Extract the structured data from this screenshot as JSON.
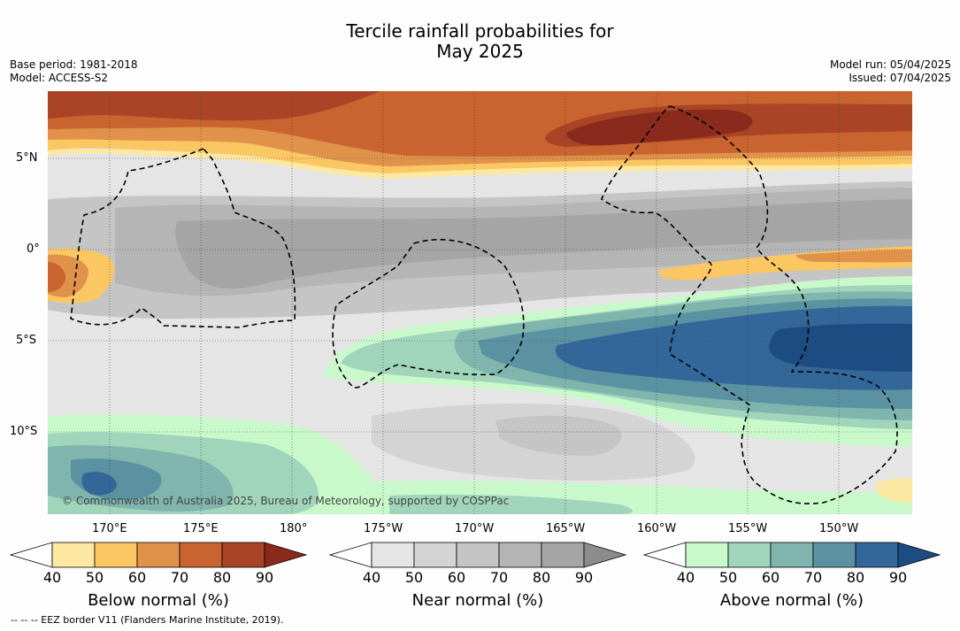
{
  "title": {
    "line1": "Tercile rainfall probabilities for",
    "line2": "May 2025"
  },
  "meta": {
    "base_period": "Base period: 1981-2018",
    "model": "Model: ACCESS-S2",
    "model_run": "Model run: 05/04/2025",
    "issued": "Issued: 07/04/2025"
  },
  "map": {
    "lat_labels": [
      "5°N",
      "0°",
      "5°S",
      "10°S"
    ],
    "lon_labels": [
      "170°E",
      "175°E",
      "180°",
      "175°W",
      "170°W",
      "165°W",
      "160°W",
      "155°W",
      "150°W"
    ],
    "copyright": "© Commonwealth of Australia 2025, Bureau of Meteorology, supported by COSPPac",
    "colors": {
      "below": [
        "#fde8a1",
        "#fbc762",
        "#e1924a",
        "#c9632f",
        "#a94426",
        "#8a2a1d"
      ],
      "near": [
        "#e5e5e5",
        "#d4d4d4",
        "#c5c5c5",
        "#b5b5b5",
        "#a5a5a5",
        "#8c8c8c"
      ],
      "above": [
        "#c9f9cb",
        "#a0d5bb",
        "#7fb5ad",
        "#5b92a2",
        "#33679a",
        "#1c4c82"
      ]
    }
  },
  "colorbars": [
    {
      "ticks": [
        "40",
        "50",
        "60",
        "70",
        "80",
        "90"
      ],
      "label": "Below normal (%)"
    },
    {
      "ticks": [
        "40",
        "50",
        "60",
        "70",
        "80",
        "90"
      ],
      "label": "Near normal (%)"
    },
    {
      "ticks": [
        "40",
        "50",
        "60",
        "70",
        "80",
        "90"
      ],
      "label": "Above normal (%)"
    }
  ],
  "footer": "--  --  -- EEZ border V11 (Flanders Marine Institute, 2019)."
}
